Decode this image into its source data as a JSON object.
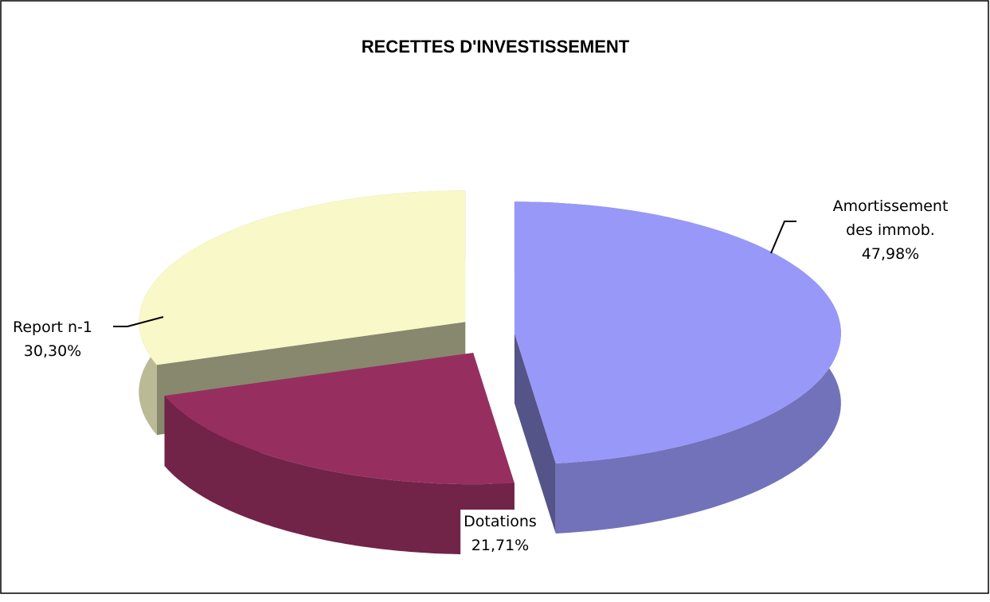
{
  "chart_data": {
    "type": "pie3d",
    "title": "RECETTES D'INVESTISSEMENT",
    "categories": [
      "Amortissement des immob.",
      "Dotations",
      "Report n-1"
    ],
    "values": [
      47.98,
      21.71,
      30.3
    ],
    "value_labels": [
      "47,98%",
      "21,71%",
      "30,30%"
    ],
    "colors": [
      "#9898f8",
      "#962f60",
      "#f8f8c8"
    ]
  }
}
